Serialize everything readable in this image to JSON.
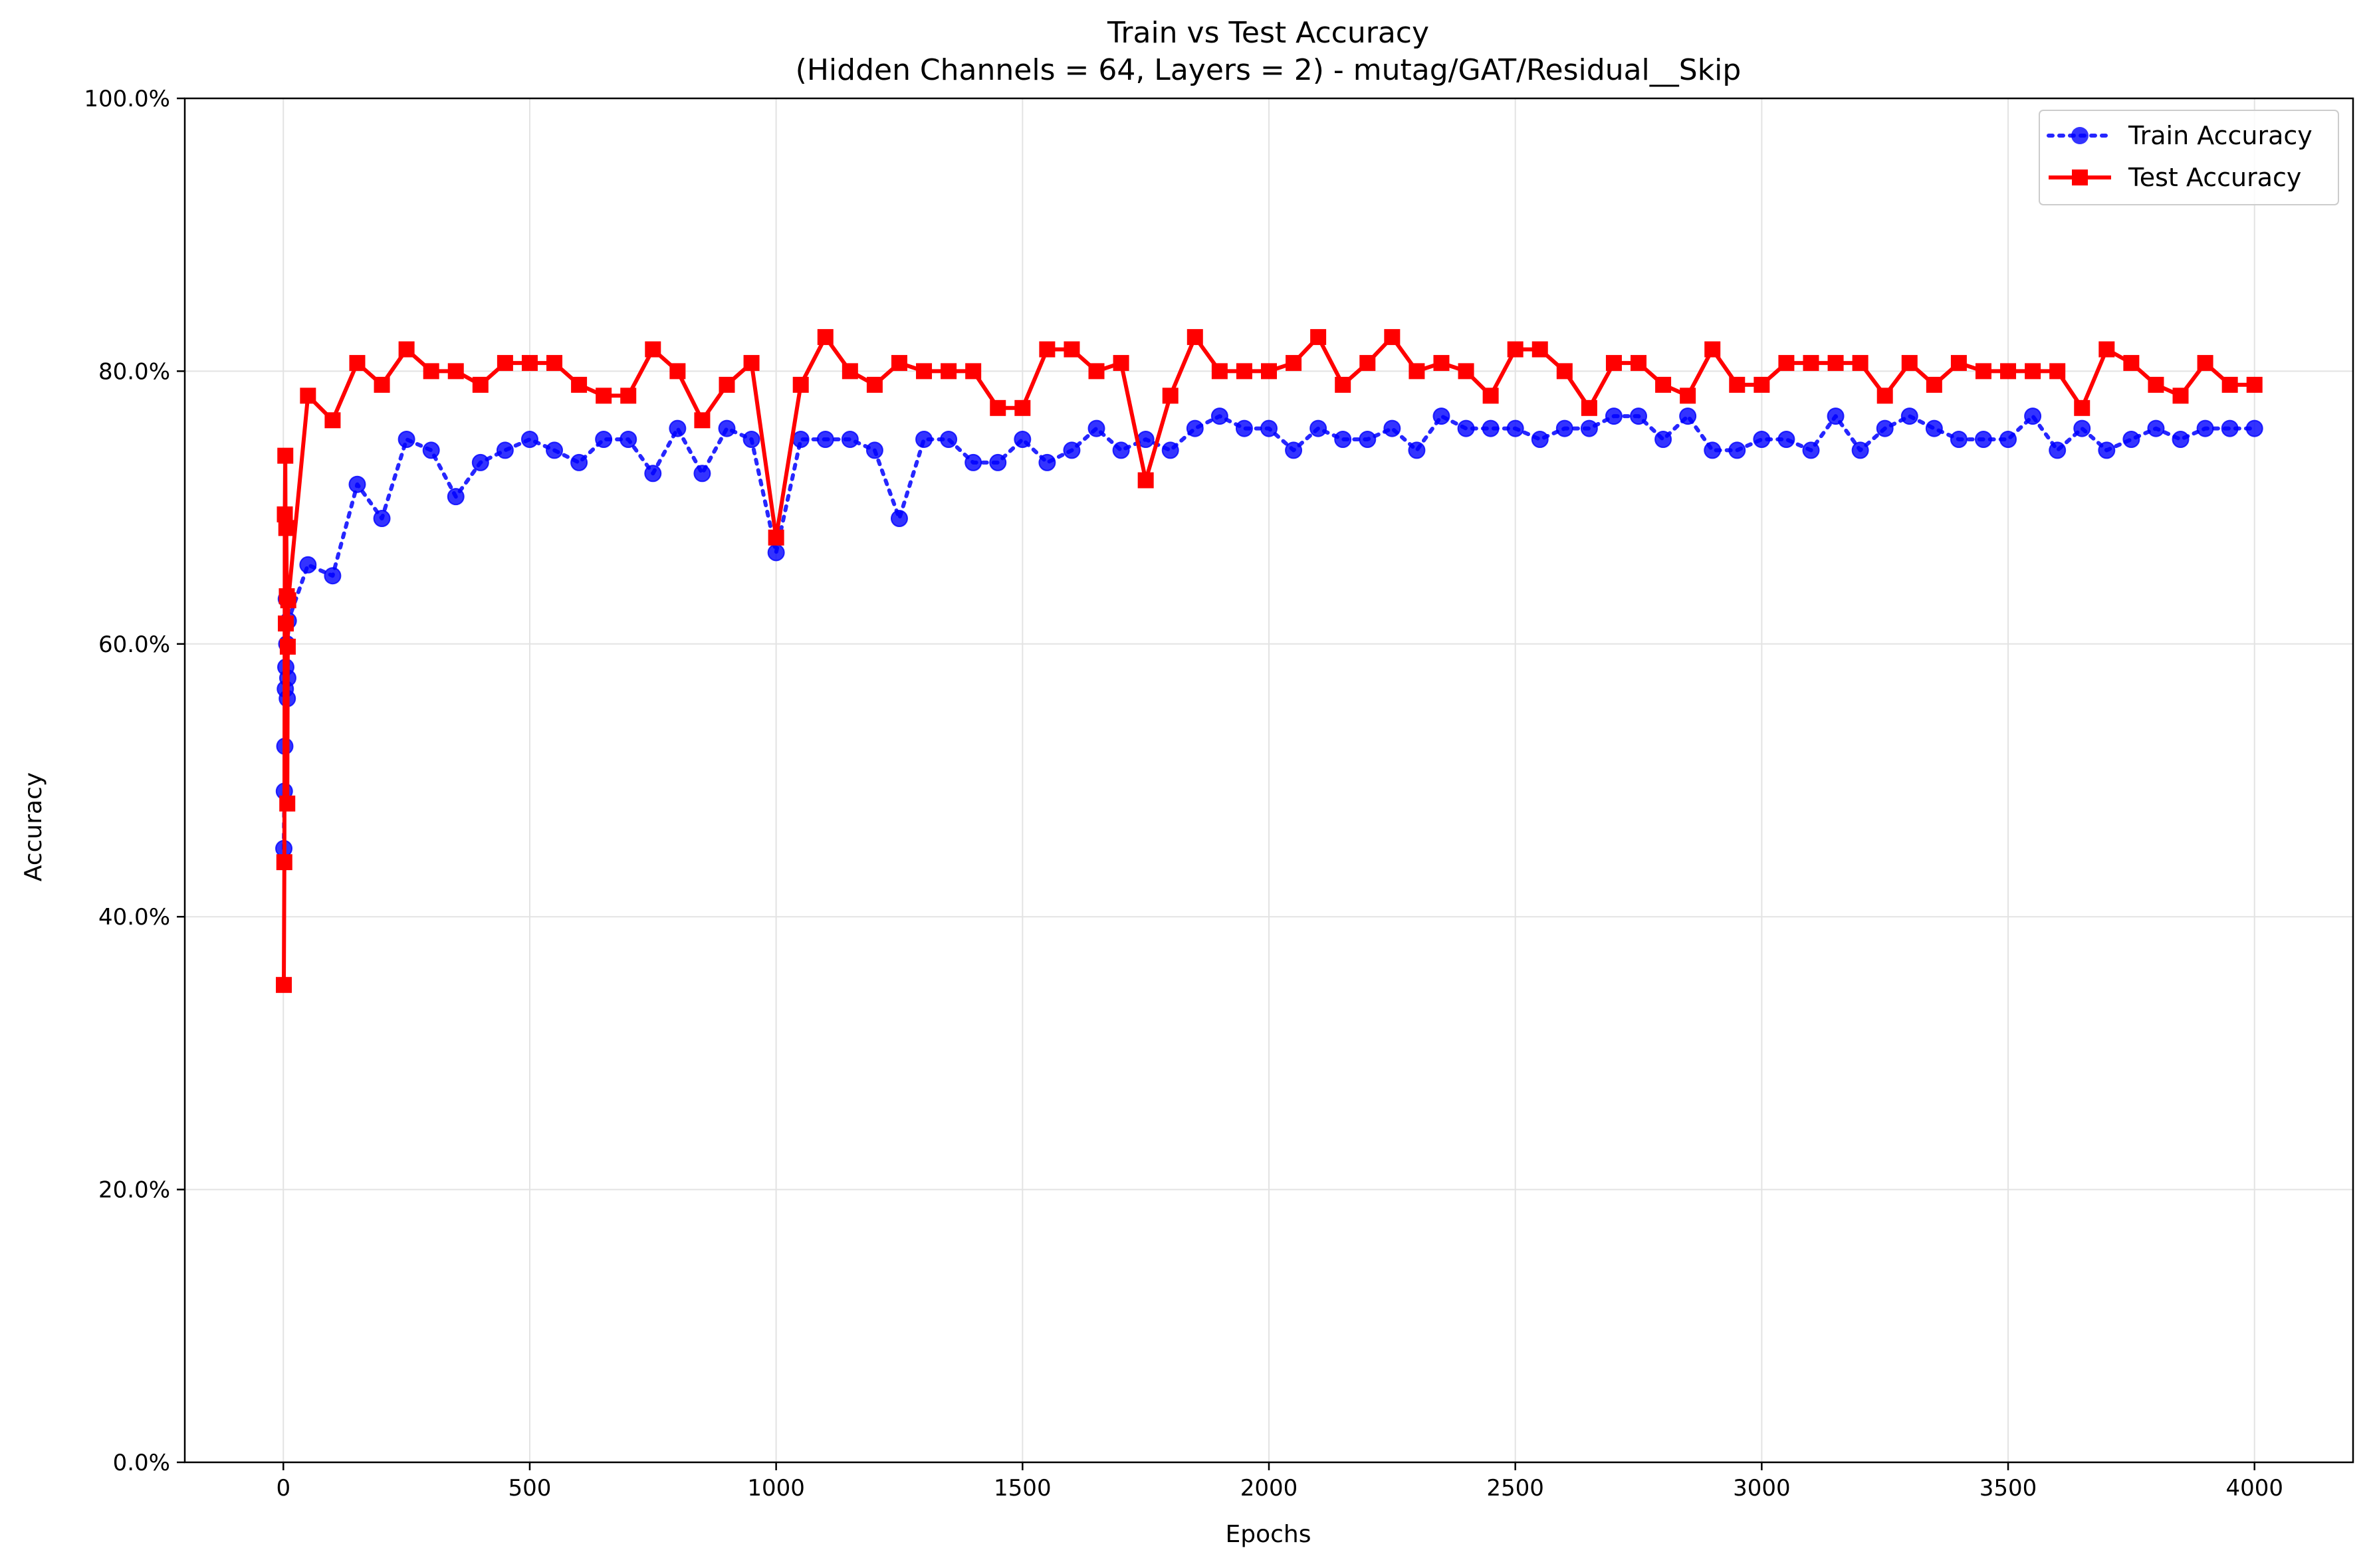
{
  "chart_data": {
    "type": "line",
    "title": "Train vs Test Accuracy",
    "subtitle": "(Hidden Channels = 64, Layers = 2) - mutag/GAT/Residual__Skip",
    "xlabel": "Epochs",
    "ylabel": "Accuracy",
    "xlim": [
      -200,
      4200
    ],
    "ylim": [
      0,
      100
    ],
    "xticks": [
      0,
      500,
      1000,
      1500,
      2000,
      2500,
      3000,
      3500,
      4000
    ],
    "xtick_labels": [
      "0",
      "500",
      "1000",
      "1500",
      "2000",
      "2500",
      "3000",
      "3500",
      "4000"
    ],
    "yticks": [
      0,
      20,
      40,
      60,
      80,
      100
    ],
    "ytick_labels": [
      "0.0%",
      "20.0%",
      "40.0%",
      "60.0%",
      "80.0%",
      "100.0%"
    ],
    "grid": true,
    "legend_position": "top-right",
    "x": [
      1,
      2,
      3,
      4,
      5,
      6,
      7,
      8,
      9,
      10,
      50,
      100,
      150,
      200,
      250,
      300,
      350,
      400,
      450,
      500,
      550,
      600,
      650,
      700,
      750,
      800,
      850,
      900,
      950,
      1000,
      1050,
      1100,
      1150,
      1200,
      1250,
      1300,
      1350,
      1400,
      1450,
      1500,
      1550,
      1600,
      1650,
      1700,
      1750,
      1800,
      1850,
      1900,
      1950,
      2000,
      2050,
      2100,
      2150,
      2200,
      2250,
      2300,
      2350,
      2400,
      2450,
      2500,
      2550,
      2600,
      2650,
      2700,
      2750,
      2800,
      2850,
      2900,
      2950,
      3000,
      3050,
      3100,
      3150,
      3200,
      3250,
      3300,
      3350,
      3400,
      3450,
      3500,
      3550,
      3600,
      3650,
      3700,
      3750,
      3800,
      3850,
      3900,
      3950,
      4000
    ],
    "series": [
      {
        "name": "Train Accuracy",
        "color": "#0000ff",
        "marker": "circle",
        "linestyle": "dotted",
        "values": [
          45.0,
          49.2,
          52.5,
          56.7,
          58.3,
          63.3,
          60.0,
          56.0,
          57.5,
          61.7,
          65.8,
          65.0,
          71.7,
          69.2,
          75.0,
          74.2,
          70.8,
          73.3,
          74.2,
          75.0,
          74.2,
          73.3,
          75.0,
          75.0,
          72.5,
          75.8,
          72.5,
          75.8,
          75.0,
          66.7,
          75.0,
          75.0,
          75.0,
          74.2,
          69.2,
          75.0,
          75.0,
          73.3,
          73.3,
          75.0,
          73.3,
          74.2,
          75.8,
          74.2,
          75.0,
          74.2,
          75.8,
          76.7,
          75.8,
          75.8,
          74.2,
          75.8,
          75.0,
          75.0,
          75.8,
          74.2,
          76.7,
          75.8,
          75.8,
          75.8,
          75.0,
          75.8,
          75.8,
          76.7,
          76.7,
          75.0,
          76.7,
          74.2,
          74.2,
          75.0,
          75.0,
          74.2,
          76.7,
          74.2,
          75.8,
          76.7,
          75.8,
          75.0,
          75.0,
          75.0,
          76.7,
          74.2,
          75.8,
          74.2,
          75.0,
          75.8,
          75.0,
          75.8,
          75.8,
          75.8
        ]
      },
      {
        "name": "Test Accuracy",
        "color": "#ff0000",
        "marker": "square",
        "linestyle": "solid",
        "values": [
          35.0,
          44.0,
          69.5,
          73.8,
          61.5,
          68.5,
          63.5,
          48.3,
          59.8,
          63.2,
          78.2,
          76.4,
          80.6,
          79.0,
          81.6,
          80.0,
          80.0,
          79.0,
          80.6,
          80.6,
          80.6,
          79.0,
          78.2,
          78.2,
          81.6,
          80.0,
          76.4,
          79.0,
          80.6,
          67.8,
          79.0,
          82.5,
          80.0,
          79.0,
          80.6,
          80.0,
          80.0,
          80.0,
          77.3,
          77.3,
          81.6,
          81.6,
          80.0,
          80.6,
          72.0,
          78.2,
          82.5,
          80.0,
          80.0,
          80.0,
          80.6,
          82.5,
          79.0,
          80.6,
          82.5,
          80.0,
          80.6,
          80.0,
          78.2,
          81.6,
          81.6,
          80.0,
          77.3,
          80.6,
          80.6,
          79.0,
          78.2,
          81.6,
          79.0,
          79.0,
          80.6,
          80.6,
          80.6,
          80.6,
          78.2,
          80.6,
          79.0,
          80.6,
          80.0,
          80.0,
          80.0,
          80.0,
          77.3,
          81.6,
          80.6,
          79.0,
          78.2,
          80.6,
          79.0,
          79.0
        ]
      }
    ]
  }
}
